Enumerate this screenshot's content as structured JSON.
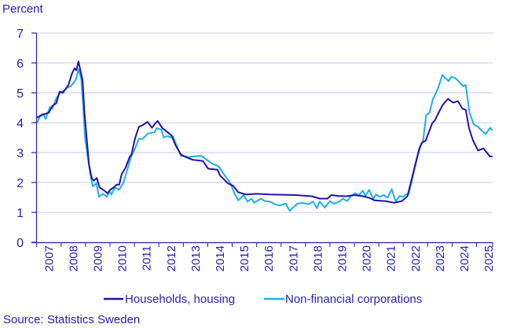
{
  "chart_data": {
    "type": "line",
    "ylabel": "Percent",
    "ylim": [
      0,
      7
    ],
    "yticks": [
      "0",
      "1",
      "2",
      "3",
      "4",
      "5",
      "6",
      "7"
    ],
    "xlim": [
      2007,
      2025.67
    ],
    "xticks": [
      "2007",
      "2008",
      "2009",
      "2010",
      "2011",
      "2012",
      "2013",
      "2014",
      "2015",
      "2016",
      "2017",
      "2018",
      "2019",
      "2020",
      "2021",
      "2022",
      "2023",
      "2024",
      "2025"
    ],
    "grid": "horizontal",
    "legend_position": "bottom",
    "source": "Source: Statistics Sweden",
    "colors": {
      "text": "#2a1fb4",
      "grid": "#c8c8f0",
      "axis": "#2a1fb4"
    },
    "series": [
      {
        "name": "Households, housing",
        "color": "#2a0fa8",
        "points": [
          [
            2007.0,
            4.17
          ],
          [
            2007.2,
            4.25
          ],
          [
            2007.5,
            4.34
          ],
          [
            2007.64,
            4.56
          ],
          [
            2007.8,
            4.65
          ],
          [
            2007.94,
            5.04
          ],
          [
            2008.07,
            5.0
          ],
          [
            2008.3,
            5.26
          ],
          [
            2008.45,
            5.66
          ],
          [
            2008.55,
            5.82
          ],
          [
            2008.62,
            5.75
          ],
          [
            2008.71,
            6.05
          ],
          [
            2008.88,
            5.4
          ],
          [
            2008.95,
            4.4
          ],
          [
            2009.04,
            3.55
          ],
          [
            2009.14,
            2.6
          ],
          [
            2009.25,
            2.15
          ],
          [
            2009.34,
            2.06
          ],
          [
            2009.46,
            2.15
          ],
          [
            2009.57,
            1.84
          ],
          [
            2009.73,
            1.75
          ],
          [
            2009.9,
            1.64
          ],
          [
            2010.0,
            1.75
          ],
          [
            2010.16,
            1.84
          ],
          [
            2010.27,
            1.93
          ],
          [
            2010.38,
            1.93
          ],
          [
            2010.48,
            2.28
          ],
          [
            2010.64,
            2.5
          ],
          [
            2010.8,
            2.85
          ],
          [
            2010.88,
            2.94
          ],
          [
            2011.02,
            3.46
          ],
          [
            2011.18,
            3.86
          ],
          [
            2011.34,
            3.92
          ],
          [
            2011.53,
            4.03
          ],
          [
            2011.72,
            3.83
          ],
          [
            2011.82,
            3.95
          ],
          [
            2011.95,
            4.06
          ],
          [
            2012.14,
            3.82
          ],
          [
            2012.36,
            3.68
          ],
          [
            2012.52,
            3.57
          ],
          [
            2012.68,
            3.25
          ],
          [
            2012.9,
            2.94
          ],
          [
            2013.1,
            2.85
          ],
          [
            2013.38,
            2.76
          ],
          [
            2013.8,
            2.72
          ],
          [
            2014.02,
            2.46
          ],
          [
            2014.4,
            2.43
          ],
          [
            2014.5,
            2.24
          ],
          [
            2014.82,
            1.97
          ],
          [
            2015.04,
            1.89
          ],
          [
            2015.25,
            1.67
          ],
          [
            2015.57,
            1.6
          ],
          [
            2016.0,
            1.62
          ],
          [
            2016.54,
            1.6
          ],
          [
            2017.61,
            1.58
          ],
          [
            2018.26,
            1.54
          ],
          [
            2018.58,
            1.46
          ],
          [
            2018.9,
            1.46
          ],
          [
            2019.06,
            1.58
          ],
          [
            2019.33,
            1.55
          ],
          [
            2019.7,
            1.54
          ],
          [
            2019.97,
            1.58
          ],
          [
            2020.3,
            1.55
          ],
          [
            2020.6,
            1.49
          ],
          [
            2020.83,
            1.4
          ],
          [
            2021.26,
            1.38
          ],
          [
            2021.63,
            1.32
          ],
          [
            2021.95,
            1.38
          ],
          [
            2022.17,
            1.54
          ],
          [
            2022.33,
            2.06
          ],
          [
            2022.49,
            2.59
          ],
          [
            2022.65,
            3.11
          ],
          [
            2022.76,
            3.33
          ],
          [
            2022.92,
            3.4
          ],
          [
            2023.03,
            3.64
          ],
          [
            2023.19,
            3.99
          ],
          [
            2023.3,
            4.08
          ],
          [
            2023.45,
            4.34
          ],
          [
            2023.62,
            4.6
          ],
          [
            2023.83,
            4.8
          ],
          [
            2024.04,
            4.67
          ],
          [
            2024.24,
            4.72
          ],
          [
            2024.42,
            4.47
          ],
          [
            2024.56,
            4.43
          ],
          [
            2024.69,
            3.82
          ],
          [
            2024.85,
            3.42
          ],
          [
            2025.06,
            3.07
          ],
          [
            2025.28,
            3.14
          ],
          [
            2025.42,
            3.0
          ],
          [
            2025.55,
            2.87
          ],
          [
            2025.65,
            2.87
          ]
        ]
      },
      {
        "name": "Non-financial corporations",
        "color": "#1ab0e8",
        "points": [
          [
            2007.0,
            3.99
          ],
          [
            2007.16,
            4.25
          ],
          [
            2007.27,
            4.3
          ],
          [
            2007.37,
            4.12
          ],
          [
            2007.54,
            4.52
          ],
          [
            2007.64,
            4.47
          ],
          [
            2007.8,
            4.82
          ],
          [
            2007.96,
            5.0
          ],
          [
            2008.13,
            5.09
          ],
          [
            2008.27,
            5.18
          ],
          [
            2008.4,
            5.22
          ],
          [
            2008.6,
            5.44
          ],
          [
            2008.71,
            5.79
          ],
          [
            2008.82,
            5.48
          ],
          [
            2008.9,
            4.6
          ],
          [
            2008.98,
            3.46
          ],
          [
            2009.09,
            2.85
          ],
          [
            2009.2,
            2.24
          ],
          [
            2009.3,
            1.87
          ],
          [
            2009.44,
            1.97
          ],
          [
            2009.55,
            1.52
          ],
          [
            2009.71,
            1.62
          ],
          [
            2009.87,
            1.52
          ],
          [
            2009.98,
            1.71
          ],
          [
            2010.06,
            1.6
          ],
          [
            2010.2,
            1.84
          ],
          [
            2010.36,
            1.75
          ],
          [
            2010.54,
            1.97
          ],
          [
            2010.7,
            2.41
          ],
          [
            2010.86,
            2.85
          ],
          [
            2011.02,
            3.13
          ],
          [
            2011.18,
            3.46
          ],
          [
            2011.34,
            3.46
          ],
          [
            2011.55,
            3.64
          ],
          [
            2011.82,
            3.68
          ],
          [
            2011.91,
            3.82
          ],
          [
            2012.1,
            3.77
          ],
          [
            2012.2,
            3.51
          ],
          [
            2012.36,
            3.55
          ],
          [
            2012.47,
            3.51
          ],
          [
            2012.57,
            3.55
          ],
          [
            2012.79,
            3.11
          ],
          [
            2012.9,
            2.89
          ],
          [
            2013.05,
            2.88
          ],
          [
            2013.22,
            2.85
          ],
          [
            2013.43,
            2.87
          ],
          [
            2013.75,
            2.89
          ],
          [
            2013.97,
            2.75
          ],
          [
            2014.18,
            2.63
          ],
          [
            2014.45,
            2.54
          ],
          [
            2014.66,
            2.28
          ],
          [
            2014.93,
            1.97
          ],
          [
            2015.1,
            1.62
          ],
          [
            2015.25,
            1.4
          ],
          [
            2015.47,
            1.58
          ],
          [
            2015.63,
            1.36
          ],
          [
            2015.79,
            1.46
          ],
          [
            2015.9,
            1.32
          ],
          [
            2016.17,
            1.46
          ],
          [
            2016.33,
            1.38
          ],
          [
            2016.54,
            1.36
          ],
          [
            2016.76,
            1.27
          ],
          [
            2016.92,
            1.23
          ],
          [
            2017.2,
            1.29
          ],
          [
            2017.35,
            1.05
          ],
          [
            2017.51,
            1.18
          ],
          [
            2017.67,
            1.29
          ],
          [
            2017.88,
            1.32
          ],
          [
            2018.1,
            1.27
          ],
          [
            2018.31,
            1.36
          ],
          [
            2018.47,
            1.14
          ],
          [
            2018.58,
            1.36
          ],
          [
            2018.79,
            1.16
          ],
          [
            2019.0,
            1.38
          ],
          [
            2019.17,
            1.29
          ],
          [
            2019.38,
            1.36
          ],
          [
            2019.54,
            1.46
          ],
          [
            2019.7,
            1.38
          ],
          [
            2019.86,
            1.54
          ],
          [
            2020.03,
            1.64
          ],
          [
            2020.19,
            1.58
          ],
          [
            2020.35,
            1.73
          ],
          [
            2020.45,
            1.55
          ],
          [
            2020.6,
            1.75
          ],
          [
            2020.78,
            1.45
          ],
          [
            2020.88,
            1.6
          ],
          [
            2021.04,
            1.52
          ],
          [
            2021.2,
            1.58
          ],
          [
            2021.36,
            1.49
          ],
          [
            2021.53,
            1.78
          ],
          [
            2021.69,
            1.36
          ],
          [
            2021.85,
            1.55
          ],
          [
            2022.0,
            1.52
          ],
          [
            2022.11,
            1.6
          ],
          [
            2022.22,
            1.62
          ],
          [
            2022.38,
            2.15
          ],
          [
            2022.54,
            2.72
          ],
          [
            2022.7,
            3.2
          ],
          [
            2022.81,
            3.38
          ],
          [
            2022.94,
            4.25
          ],
          [
            2023.08,
            4.34
          ],
          [
            2023.21,
            4.78
          ],
          [
            2023.4,
            5.09
          ],
          [
            2023.6,
            5.6
          ],
          [
            2023.72,
            5.5
          ],
          [
            2023.86,
            5.39
          ],
          [
            2023.97,
            5.54
          ],
          [
            2024.15,
            5.48
          ],
          [
            2024.31,
            5.35
          ],
          [
            2024.45,
            5.22
          ],
          [
            2024.56,
            5.26
          ],
          [
            2024.71,
            4.34
          ],
          [
            2024.88,
            3.95
          ],
          [
            2025.06,
            3.86
          ],
          [
            2025.22,
            3.73
          ],
          [
            2025.38,
            3.62
          ],
          [
            2025.55,
            3.83
          ],
          [
            2025.65,
            3.75
          ]
        ]
      }
    ]
  }
}
